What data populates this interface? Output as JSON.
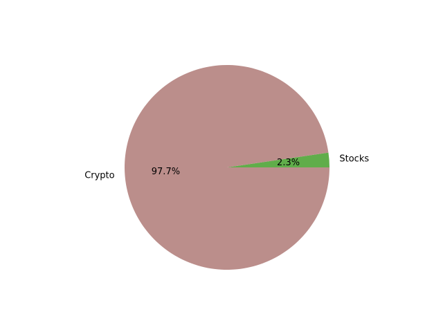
{
  "chart_data": {
    "type": "pie",
    "labels": [
      "Stocks",
      "Crypto"
    ],
    "values": [
      2.3,
      97.7
    ],
    "percent_labels": [
      "2.3%",
      "97.7%"
    ],
    "colors": [
      "#60ad4a",
      "#bb8e8b"
    ],
    "start_angle_deg": 0,
    "direction": "counterclockwise",
    "title": "",
    "legend": "none"
  }
}
